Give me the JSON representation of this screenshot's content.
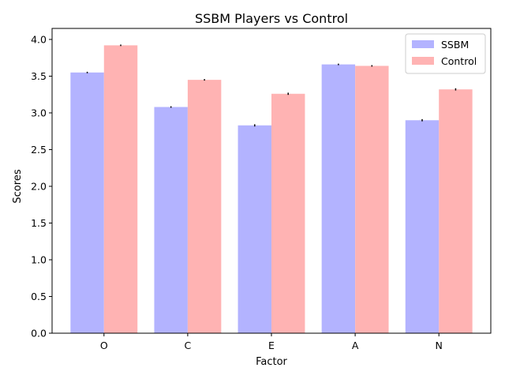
{
  "chart_data": {
    "type": "bar",
    "title": "SSBM Players vs Control",
    "xlabel": "Factor",
    "ylabel": "Scores",
    "categories": [
      "O",
      "C",
      "E",
      "A",
      "N"
    ],
    "ylim": [
      0,
      4.15
    ],
    "yticks": [
      "0.0",
      "0.5",
      "1.0",
      "1.5",
      "2.0",
      "2.5",
      "3.0",
      "3.5",
      "4.0"
    ],
    "grid": false,
    "legend_position": "top-right",
    "series": [
      {
        "name": "SSBM",
        "color": "#b3b3ff",
        "values": [
          3.55,
          3.08,
          2.83,
          3.66,
          2.9
        ],
        "errors": [
          0.01,
          0.01,
          0.015,
          0.01,
          0.015
        ]
      },
      {
        "name": "Control",
        "color": "#ffb3b3",
        "values": [
          3.92,
          3.45,
          3.26,
          3.64,
          3.32
        ],
        "errors": [
          0.01,
          0.01,
          0.015,
          0.01,
          0.015
        ]
      }
    ]
  }
}
